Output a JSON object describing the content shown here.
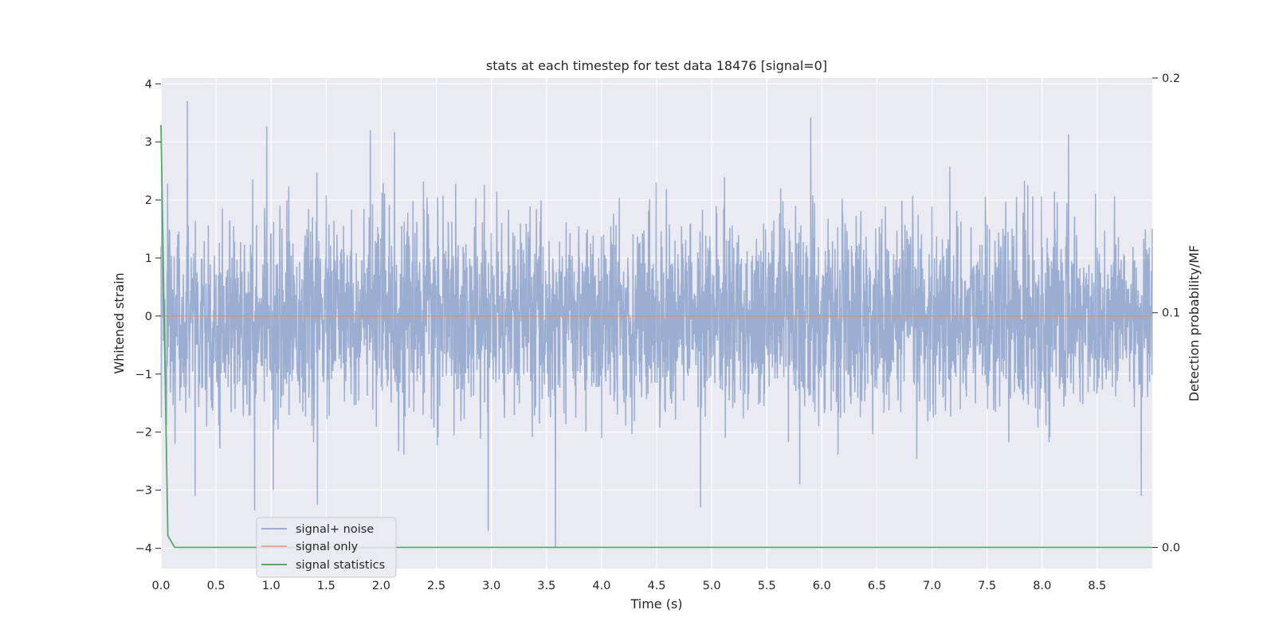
{
  "chart_data": {
    "type": "line",
    "title": "stats at each timestep for test data 18476 [signal=0]",
    "xlabel": "Time (s)",
    "ylabel": "Whitened strain",
    "y2label": "Detection probability/MF",
    "xlim": [
      0.0,
      9.0
    ],
    "ylim": [
      -4.35,
      4.1
    ],
    "y2lim": [
      -0.009,
      0.2
    ],
    "x_ticks": [
      "0.0",
      "0.5",
      "1.0",
      "1.5",
      "2.0",
      "2.5",
      "3.0",
      "3.5",
      "4.0",
      "4.5",
      "5.0",
      "5.5",
      "6.0",
      "6.5",
      "7.0",
      "7.5",
      "8.0",
      "8.5"
    ],
    "y_ticks": [
      "4",
      "3",
      "2",
      "1",
      "0",
      "−1",
      "−2",
      "−3",
      "−4"
    ],
    "y2_ticks": [
      "0.2",
      "0.1",
      "0.0"
    ],
    "grid": true,
    "legend_position": "lower-left",
    "series": [
      {
        "name": "signal+ noise",
        "color": "#4c72b0",
        "style": "dense noise, approx. std 0.8, range -4 to 3.7",
        "points": [
          [
            0.0,
            1.2
          ],
          [
            0.24,
            3.7
          ],
          [
            0.31,
            -3.1
          ],
          [
            0.85,
            -3.35
          ],
          [
            0.96,
            3.27
          ],
          [
            1.02,
            -3.0
          ],
          [
            1.42,
            -3.25
          ],
          [
            1.9,
            3.2
          ],
          [
            2.12,
            3.17
          ],
          [
            2.97,
            -3.7
          ],
          [
            3.58,
            -4.0
          ],
          [
            4.9,
            -3.3
          ],
          [
            5.9,
            3.42
          ],
          [
            8.24,
            3.13
          ],
          [
            8.9,
            -3.1
          ],
          [
            9.0,
            1.5
          ]
        ]
      },
      {
        "name": "signal only",
        "color": "#dd8452",
        "points": [
          [
            0.0,
            0.0
          ],
          [
            9.0,
            0.0
          ]
        ]
      },
      {
        "name": "signal statistics",
        "color": "#55a868",
        "axis": "right",
        "points": [
          [
            0.0,
            0.18
          ],
          [
            0.0625,
            0.005
          ],
          [
            0.125,
            0.0
          ],
          [
            9.0,
            0.0
          ]
        ]
      }
    ]
  }
}
